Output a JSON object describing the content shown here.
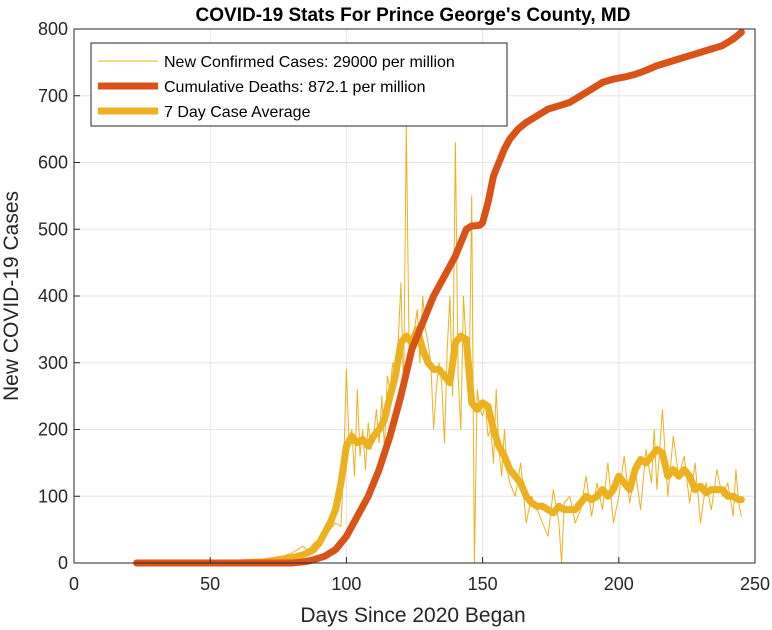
{
  "chart_data": {
    "type": "line",
    "title": "COVID-19 Stats For Prince George's County, MD",
    "xlabel": "Days Since 2020 Began",
    "ylabel": "New COVID-19 Cases",
    "xlim": [
      0,
      250
    ],
    "ylim": [
      0,
      800
    ],
    "xticks": [
      0,
      50,
      100,
      150,
      200,
      250
    ],
    "yticks": [
      0,
      100,
      200,
      300,
      400,
      500,
      600,
      700,
      800
    ],
    "grid": true,
    "legend_position": "top-left",
    "series": [
      {
        "name": "New Confirmed Cases: 29000 per million",
        "color": "#EDB120",
        "style": "thin",
        "x": [
          23,
          30,
          40,
          50,
          60,
          70,
          75,
          78,
          80,
          82,
          84,
          86,
          88,
          90,
          92,
          94,
          96,
          98,
          99,
          100,
          101,
          102,
          103,
          104,
          105,
          106,
          107,
          108,
          109,
          110,
          111,
          112,
          113,
          114,
          115,
          116,
          117,
          118,
          119,
          120,
          121,
          122,
          123,
          124,
          125,
          126,
          127,
          128,
          129,
          130,
          131,
          132,
          133,
          134,
          135,
          136,
          137,
          138,
          139,
          140,
          141,
          142,
          143,
          144,
          145,
          146,
          147,
          148,
          149,
          150,
          151,
          152,
          153,
          154,
          155,
          156,
          157,
          158,
          159,
          160,
          162,
          164,
          166,
          168,
          170,
          172,
          174,
          176,
          178,
          179,
          180,
          182,
          184,
          186,
          188,
          190,
          192,
          194,
          196,
          198,
          200,
          202,
          204,
          206,
          208,
          210,
          212,
          213,
          214,
          216,
          218,
          220,
          222,
          224,
          226,
          228,
          230,
          232,
          234,
          236,
          238,
          240,
          242,
          243,
          244,
          245
        ],
        "y": [
          0,
          0,
          0,
          0,
          0,
          3,
          8,
          12,
          15,
          20,
          25,
          18,
          30,
          35,
          45,
          50,
          60,
          55,
          150,
          290,
          180,
          200,
          130,
          260,
          160,
          200,
          140,
          210,
          170,
          190,
          230,
          180,
          250,
          170,
          280,
          260,
          300,
          280,
          330,
          420,
          250,
          655,
          320,
          310,
          350,
          380,
          300,
          400,
          350,
          330,
          300,
          200,
          260,
          300,
          270,
          180,
          320,
          400,
          250,
          630,
          280,
          200,
          400,
          320,
          250,
          550,
          0,
          260,
          230,
          220,
          240,
          190,
          200,
          150,
          260,
          170,
          130,
          200,
          140,
          120,
          100,
          150,
          60,
          100,
          80,
          60,
          40,
          110,
          60,
          0,
          90,
          100,
          60,
          80,
          130,
          70,
          120,
          80,
          150,
          60,
          100,
          160,
          90,
          140,
          80,
          170,
          120,
          200,
          110,
          230,
          100,
          190,
          130,
          160,
          90,
          150,
          60,
          120,
          80,
          140,
          100,
          120,
          70,
          140,
          90,
          70
        ]
      },
      {
        "name": "Cumulative Deaths: 872.1 per million",
        "color": "#D95319",
        "style": "thick",
        "x": [
          23,
          40,
          60,
          80,
          85,
          88,
          92,
          96,
          100,
          104,
          108,
          112,
          116,
          120,
          124,
          128,
          132,
          136,
          140,
          144,
          146,
          147,
          149,
          150,
          152,
          154,
          156,
          158,
          160,
          163,
          166,
          170,
          174,
          178,
          182,
          186,
          190,
          194,
          198,
          202,
          206,
          210,
          214,
          218,
          222,
          226,
          230,
          234,
          238,
          242,
          245
        ],
        "y": [
          0,
          0,
          0,
          0,
          2,
          5,
          10,
          20,
          40,
          70,
          100,
          140,
          190,
          250,
          320,
          360,
          400,
          430,
          460,
          500,
          505,
          505,
          506,
          510,
          540,
          580,
          600,
          620,
          635,
          650,
          660,
          670,
          680,
          685,
          690,
          700,
          710,
          720,
          725,
          728,
          732,
          738,
          745,
          750,
          755,
          760,
          765,
          770,
          775,
          785,
          795
        ]
      },
      {
        "name": "7 Day Case Average",
        "color": "#EDB120",
        "style": "thick",
        "x": [
          23,
          40,
          60,
          70,
          75,
          80,
          84,
          88,
          90,
          92,
          94,
          96,
          98,
          100,
          102,
          104,
          106,
          108,
          110,
          112,
          114,
          116,
          118,
          120,
          122,
          124,
          126,
          128,
          130,
          132,
          134,
          136,
          138,
          140,
          142,
          144,
          146,
          148,
          150,
          152,
          154,
          156,
          158,
          160,
          162,
          164,
          166,
          168,
          170,
          172,
          174,
          176,
          178,
          180,
          182,
          184,
          186,
          188,
          190,
          192,
          194,
          196,
          198,
          200,
          202,
          204,
          206,
          208,
          210,
          212,
          214,
          216,
          218,
          220,
          222,
          224,
          226,
          228,
          230,
          232,
          234,
          236,
          238,
          240,
          242,
          244,
          245
        ],
        "y": [
          0,
          0,
          0,
          2,
          5,
          8,
          12,
          20,
          30,
          45,
          60,
          80,
          120,
          175,
          190,
          180,
          185,
          175,
          190,
          200,
          215,
          250,
          280,
          330,
          340,
          330,
          350,
          320,
          300,
          290,
          290,
          280,
          270,
          330,
          340,
          335,
          240,
          230,
          240,
          235,
          200,
          175,
          160,
          140,
          130,
          120,
          100,
          90,
          85,
          85,
          80,
          75,
          85,
          80,
          80,
          80,
          90,
          100,
          95,
          100,
          110,
          100,
          110,
          130,
          120,
          110,
          140,
          155,
          150,
          160,
          170,
          165,
          130,
          140,
          130,
          140,
          130,
          110,
          115,
          105,
          110,
          110,
          110,
          100,
          100,
          95,
          95
        ]
      }
    ]
  }
}
